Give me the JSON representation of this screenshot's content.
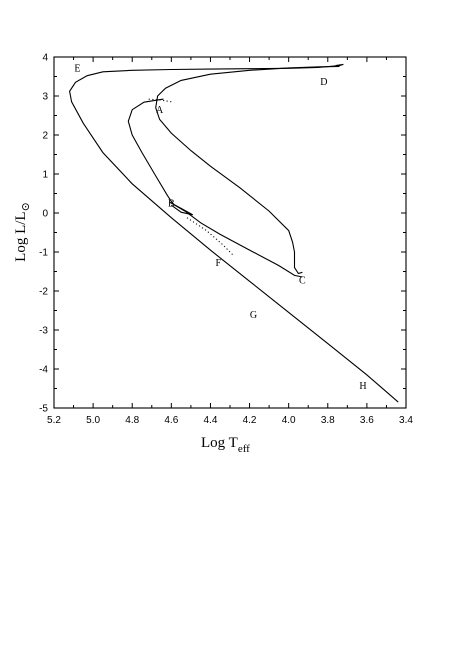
{
  "chart_data": {
    "type": "line",
    "xlabel_main": "Log T",
    "xlabel_sub": "eff",
    "ylabel_main": "Log L/L",
    "ylabel_symbol": "⊙",
    "xlim": [
      5.2,
      3.4
    ],
    "ylim": [
      -5,
      4
    ],
    "x_ticks": [
      "5.2",
      "5.0",
      "4.8",
      "4.6",
      "4.4",
      "4.2",
      "4.0",
      "3.8",
      "3.6",
      "3.4"
    ],
    "y_ticks": [
      "4",
      "3",
      "2",
      "1",
      "0",
      "-1",
      "-2",
      "-3",
      "-4",
      "-5"
    ],
    "x_tick_values": [
      5.2,
      5.0,
      4.8,
      4.6,
      4.4,
      4.2,
      4.0,
      3.8,
      3.6,
      3.4
    ],
    "y_tick_values": [
      4,
      3,
      2,
      1,
      0,
      -1,
      -2,
      -3,
      -4,
      -5
    ],
    "point_labels": [
      {
        "text": "A",
        "x": 4.66,
        "y": 2.65
      },
      {
        "text": "B",
        "x": 4.6,
        "y": 0.26
      },
      {
        "text": "C",
        "x": 3.93,
        "y": -1.72
      },
      {
        "text": "D",
        "x": 3.82,
        "y": 3.37
      },
      {
        "text": "E",
        "x": 5.08,
        "y": 3.72
      },
      {
        "text": "F",
        "x": 4.36,
        "y": -1.27
      },
      {
        "text": "G",
        "x": 4.18,
        "y": -2.6
      },
      {
        "text": "H",
        "x": 3.62,
        "y": -4.42
      }
    ],
    "series": [
      {
        "style": "solid",
        "points": [
          [
            3.44,
            -4.85
          ],
          [
            3.6,
            -4.15
          ],
          [
            3.8,
            -3.35
          ],
          [
            4.0,
            -2.55
          ],
          [
            4.2,
            -1.75
          ],
          [
            4.4,
            -0.95
          ],
          [
            4.6,
            -0.12
          ],
          [
            4.8,
            0.75
          ],
          [
            4.95,
            1.55
          ],
          [
            5.05,
            2.3
          ],
          [
            5.11,
            2.85
          ],
          [
            5.12,
            3.12
          ],
          [
            5.09,
            3.35
          ],
          [
            5.03,
            3.52
          ],
          [
            4.95,
            3.62
          ],
          [
            4.8,
            3.66
          ],
          [
            4.6,
            3.68
          ],
          [
            4.4,
            3.69
          ],
          [
            4.2,
            3.7
          ],
          [
            4.0,
            3.71
          ],
          [
            3.85,
            3.73
          ],
          [
            3.74,
            3.78
          ],
          [
            3.72,
            3.81
          ],
          [
            3.76,
            3.78
          ]
        ]
      },
      {
        "style": "solid",
        "points": [
          [
            3.74,
            3.76
          ],
          [
            3.84,
            3.75
          ],
          [
            4.0,
            3.72
          ],
          [
            4.2,
            3.66
          ],
          [
            4.4,
            3.56
          ],
          [
            4.55,
            3.4
          ],
          [
            4.63,
            3.2
          ],
          [
            4.67,
            3.0
          ],
          [
            4.68,
            2.7
          ],
          [
            4.66,
            2.4
          ],
          [
            4.6,
            2.05
          ],
          [
            4.5,
            1.6
          ],
          [
            4.4,
            1.2
          ],
          [
            4.25,
            0.65
          ],
          [
            4.1,
            0.05
          ],
          [
            4.0,
            -0.45
          ],
          [
            3.98,
            -0.75
          ],
          [
            3.97,
            -1.0
          ],
          [
            3.97,
            -1.4
          ],
          [
            3.95,
            -1.55
          ],
          [
            3.93,
            -1.52
          ]
        ]
      },
      {
        "style": "solid",
        "points": [
          [
            4.64,
            2.92
          ],
          [
            4.74,
            2.84
          ],
          [
            4.8,
            2.65
          ],
          [
            4.82,
            2.35
          ],
          [
            4.8,
            2.0
          ],
          [
            4.75,
            1.55
          ],
          [
            4.68,
            0.95
          ],
          [
            4.62,
            0.45
          ],
          [
            4.59,
            0.22
          ],
          [
            4.53,
            0.05
          ],
          [
            4.45,
            -0.25
          ],
          [
            4.35,
            -0.55
          ],
          [
            4.2,
            -0.95
          ],
          [
            4.05,
            -1.35
          ],
          [
            3.97,
            -1.6
          ],
          [
            3.93,
            -1.64
          ]
        ]
      },
      {
        "style": "solid",
        "points": [
          [
            4.61,
            0.28
          ],
          [
            4.55,
            0.12
          ],
          [
            4.49,
            -0.05
          ],
          [
            4.55,
            0.02
          ],
          [
            4.6,
            0.2
          ]
        ]
      },
      {
        "style": "dotted",
        "points": [
          [
            4.6,
            2.85
          ],
          [
            4.66,
            2.9
          ],
          [
            4.72,
            2.92
          ]
        ]
      },
      {
        "style": "dotted",
        "points": [
          [
            4.52,
            -0.12
          ],
          [
            4.42,
            -0.45
          ],
          [
            4.34,
            -0.8
          ],
          [
            4.28,
            -1.1
          ]
        ]
      }
    ]
  }
}
